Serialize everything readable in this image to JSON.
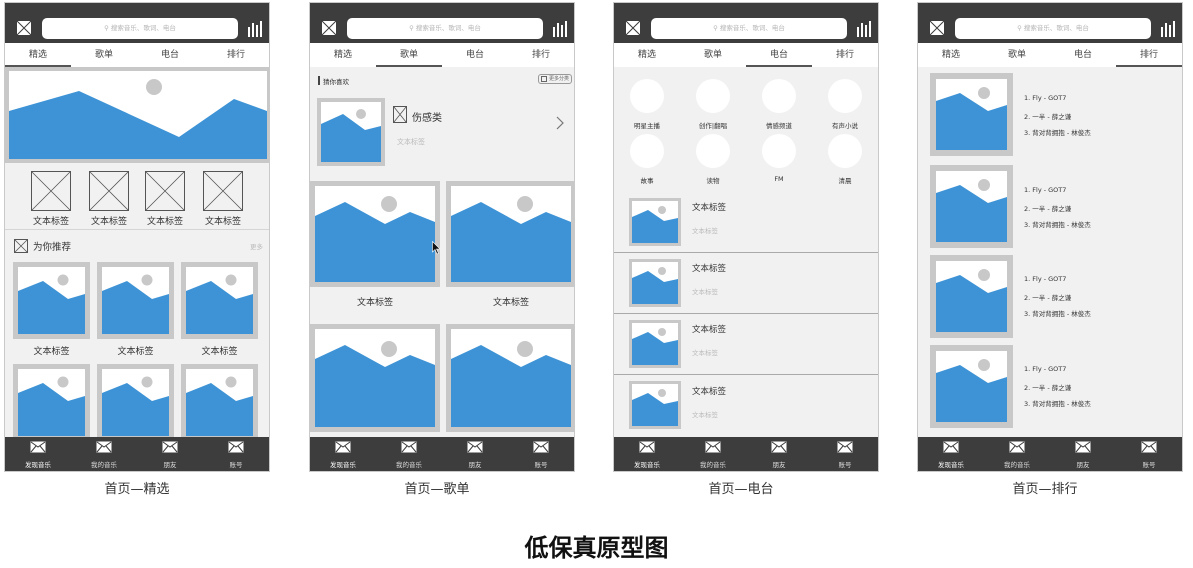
{
  "title": "低保真原型图",
  "common": {
    "search_placeholder": "搜索音乐、歌词、电台",
    "tabs": [
      "精选",
      "歌单",
      "电台",
      "排行"
    ],
    "bottom_nav": [
      "发现音乐",
      "我的音乐",
      "朋友",
      "账号"
    ]
  },
  "screens": [
    {
      "caption": "首页—精选",
      "categories": [
        "文本标签",
        "文本标签",
        "文本标签",
        "文本标签"
      ],
      "recommend_title": "为你推荐",
      "recommend_more": "更多",
      "grid_labels": [
        "文本标签",
        "文本标签",
        "文本标签"
      ]
    },
    {
      "caption": "首页—歌单",
      "section_title": "猜你喜欢",
      "section_action": "更多分类",
      "featured_title": "伤感类",
      "featured_sub": "文本标签",
      "card_labels": [
        "文本标签",
        "文本标签"
      ]
    },
    {
      "caption": "首页—电台",
      "circles": [
        "明星主播",
        "创作|翻唱",
        "情感频道",
        "有声小说",
        "故事",
        "读物",
        "FM",
        "清晨"
      ],
      "items": [
        {
          "title": "文本标签",
          "sub": "文本标签"
        },
        {
          "title": "文本标签",
          "sub": "文本标签"
        },
        {
          "title": "文本标签",
          "sub": "文本标签"
        },
        {
          "title": "文本标签",
          "sub": "文本标签"
        }
      ]
    },
    {
      "caption": "首页—排行",
      "charts": [
        [
          "1. Fly - GOT7",
          "2. 一半 - 薛之谦",
          "3. 背对背拥抱 - 林俊杰"
        ],
        [
          "1. Fly - GOT7",
          "2. 一半 - 薛之谦",
          "3. 背对背拥抱 - 林俊杰"
        ],
        [
          "1. Fly - GOT7",
          "2. 一半 - 薛之谦",
          "3. 背对背拥抱 - 林俊杰"
        ],
        [
          "1. Fly - GOT7",
          "2. 一半 - 薛之谦",
          "3. 背对背拥抱 - 林俊杰"
        ]
      ]
    }
  ]
}
